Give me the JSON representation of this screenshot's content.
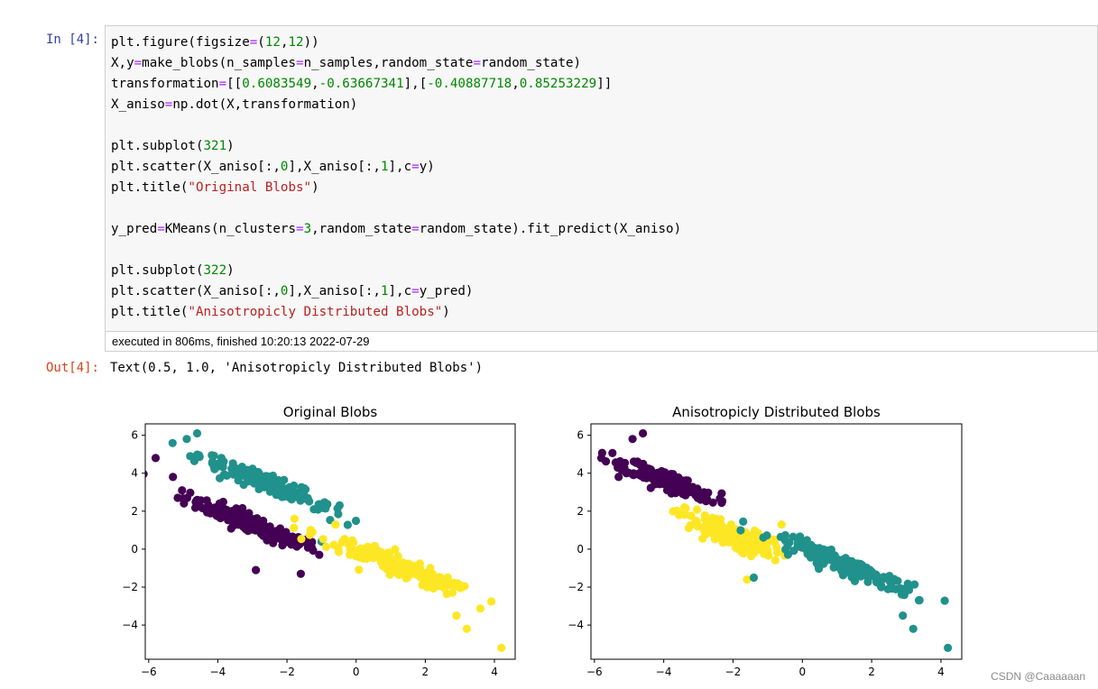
{
  "cell": {
    "in_prompt": "In  [4]:",
    "out_prompt": "Out[4]:",
    "exec_info": "executed in 806ms, finished 10:20:13 2022-07-29",
    "output_text": "Text(0.5, 1.0, 'Anisotropicly Distributed Blobs')",
    "code_lines": [
      "plt.figure(figsize=(12,12))",
      "X,y=make_blobs(n_samples=n_samples,random_state=random_state)",
      "transformation=[[0.6083549,-0.63667341],[-0.40887718,0.85253229]]",
      "X_aniso=np.dot(X,transformation)",
      "",
      "plt.subplot(321)",
      "plt.scatter(X_aniso[:,0],X_aniso[:,1],c=y)",
      "plt.title(\"Original Blobs\")",
      "",
      "y_pred=KMeans(n_clusters=3,random_state=random_state).fit_predict(X_aniso)",
      "",
      "plt.subplot(322)",
      "plt.scatter(X_aniso[:,0],X_aniso[:,1],c=y_pred)",
      "plt.title(\"Anisotropicly Distributed Blobs\")"
    ]
  },
  "watermark": "CSDN @Caaaaaan",
  "colors": {
    "purple": "#440154",
    "teal": "#21918c",
    "yellow": "#fde725"
  },
  "chart_data": [
    {
      "type": "scatter",
      "title": "Original Blobs",
      "xlim": [
        -6.1,
        4.6
      ],
      "ylim": [
        -5.8,
        6.6
      ],
      "xticks": [
        -6,
        -4,
        -2,
        0,
        2,
        4
      ],
      "yticks": [
        -4,
        -2,
        0,
        2,
        4,
        6
      ],
      "grid": false,
      "clusters": [
        {
          "color": "purple",
          "center": [
            -3.0,
            1.3
          ],
          "along": 2.6,
          "across": 0.45,
          "n": 180,
          "extra_points": [
            [
              -5.8,
              4.8
            ],
            [
              -5.3,
              3.8
            ],
            [
              -2.9,
              -1.1
            ],
            [
              -1.6,
              -1.3
            ]
          ]
        },
        {
          "color": "teal",
          "center": [
            -2.6,
            3.5
          ],
          "along": 2.6,
          "across": 0.4,
          "n": 180,
          "extra_points": [
            [
              -4.9,
              5.8
            ],
            [
              -4.6,
              6.1
            ],
            [
              -4.8,
              4.9
            ],
            [
              -1.0,
              0.4
            ]
          ]
        },
        {
          "color": "yellow",
          "center": [
            1.2,
            -0.9
          ],
          "along": 3.0,
          "across": 0.45,
          "n": 180,
          "extra_points": [
            [
              4.2,
              -5.2
            ],
            [
              3.2,
              -4.2
            ],
            [
              2.9,
              -3.5
            ],
            [
              -0.6,
              1.3
            ]
          ]
        }
      ]
    },
    {
      "type": "scatter",
      "title": "Anisotropicly Distributed Blobs",
      "xlim": [
        -6.1,
        4.6
      ],
      "ylim": [
        -5.8,
        6.6
      ],
      "xticks": [
        -6,
        -4,
        -2,
        0,
        2,
        4
      ],
      "yticks": [
        -4,
        -2,
        0,
        2,
        4,
        6
      ],
      "grid": false,
      "clusters": [
        {
          "color": "purple",
          "center": [
            -3.9,
            3.6
          ],
          "along": 1.8,
          "across": 0.45,
          "n": 190,
          "extra_points": [
            [
              -5.8,
              4.8
            ],
            [
              -5.3,
              3.8
            ],
            [
              -4.6,
              6.1
            ],
            [
              -4.9,
              5.8
            ]
          ]
        },
        {
          "color": "yellow",
          "center": [
            -2.2,
            0.8
          ],
          "along": 1.9,
          "across": 0.6,
          "n": 160,
          "extra_points": [
            [
              -1.6,
              -1.6
            ],
            [
              -0.6,
              1.3
            ],
            [
              -0.8,
              0.5
            ]
          ]
        },
        {
          "color": "teal",
          "center": [
            1.3,
            -0.9
          ],
          "along": 2.8,
          "across": 0.42,
          "n": 180,
          "extra_points": [
            [
              4.2,
              -5.2
            ],
            [
              3.2,
              -4.2
            ],
            [
              2.9,
              -3.5
            ],
            [
              -1.4,
              -1.5
            ]
          ]
        }
      ]
    }
  ]
}
